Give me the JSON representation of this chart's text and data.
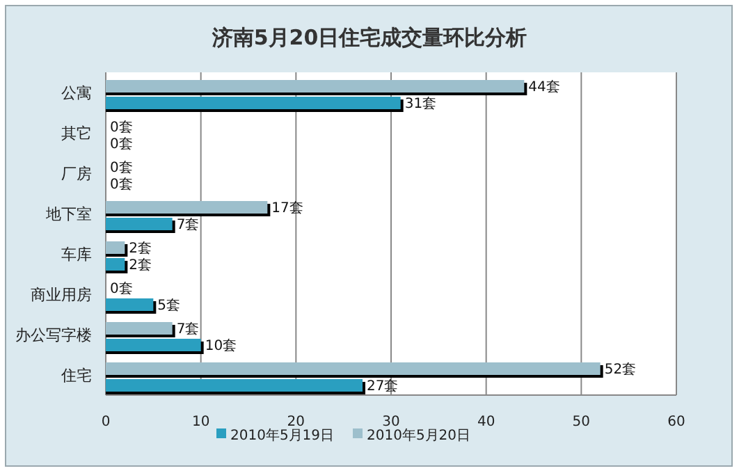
{
  "chart_data": {
    "type": "bar",
    "orientation": "horizontal",
    "title": "济南5月20日住宅成交量环比分析",
    "categories": [
      "公寓",
      "其它",
      "厂房",
      "地下室",
      "车库",
      "商业用房",
      "办公写字楼",
      "住宅"
    ],
    "series": [
      {
        "name": "2010年5月19日",
        "color": "#2a9fc0",
        "values": [
          31,
          0,
          0,
          7,
          2,
          5,
          10,
          27
        ],
        "value_labels": [
          "31套",
          "0套",
          "0套",
          "7套",
          "2套",
          "5套",
          "10套",
          "27套"
        ]
      },
      {
        "name": "2010年5月20日",
        "color": "#9dbfcc",
        "values": [
          44,
          0,
          0,
          17,
          2,
          0,
          7,
          52
        ],
        "value_labels": [
          "44套",
          "0套",
          "0套",
          "17套",
          "2套",
          "0套",
          "7套",
          "52套"
        ]
      }
    ],
    "xlim": [
      0,
      60
    ],
    "xticks": [
      0,
      10,
      20,
      30,
      40,
      50,
      60
    ],
    "grid": "x",
    "legend": "bottom"
  }
}
